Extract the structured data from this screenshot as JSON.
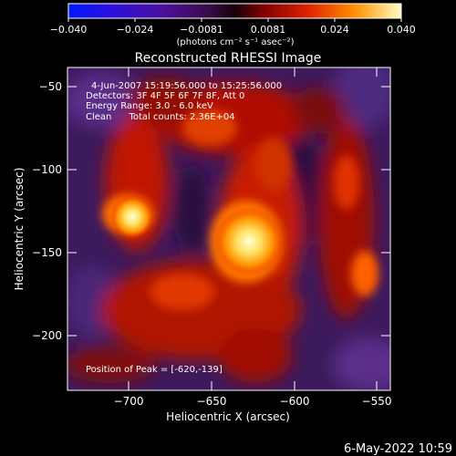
{
  "colorbar": {
    "ticks": [
      "−0.040",
      "−0.024",
      "−0.0081",
      "0.0081",
      "0.024",
      "0.040"
    ],
    "unit_label": "(photons cm⁻² s⁻¹ asec⁻²)"
  },
  "title": "Reconstructed RHESSI Image",
  "info": {
    "line1": "4-Jun-2007 15:19:56.000 to 15:25:56.000",
    "line2": "Detectors: 3F 4F 5F 6F 7F 8F, Att 0",
    "line3": "Energy Range: 3.0 - 6.0 keV",
    "line4": "Clean      Total counts: 2.36E+04"
  },
  "peak_label": "Position of Peak = [-620,-139]",
  "axes": {
    "xlabel": "Heliocentric X (arcsec)",
    "ylabel": "Heliocentric Y (arcsec)",
    "xticks": [
      "−700",
      "−650",
      "−600",
      "−550"
    ],
    "yticks": [
      "−50",
      "−100",
      "−150",
      "−200"
    ]
  },
  "footer_date": "6-May-2022 10:59"
}
